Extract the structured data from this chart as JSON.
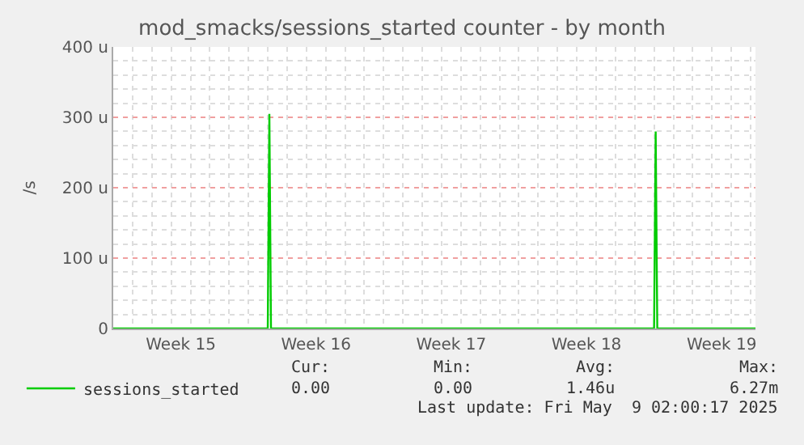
{
  "chart_data": {
    "type": "line",
    "title": "mod_smacks/sessions_started counter - by month",
    "ylabel": "/s",
    "x": [
      "2025-04-07",
      "2025-04-15T00:00",
      "2025-04-15T02:00",
      "2025-04-15T04:00",
      "2025-05-05T00:00",
      "2025-05-05T02:00",
      "2025-05-05T04:00",
      "2025-05-10T06:00"
    ],
    "series": [
      {
        "name": "sessions_started",
        "color": "#00cc00",
        "values": [
          0,
          0,
          305,
          0,
          0,
          280,
          0,
          0
        ]
      }
    ],
    "xlim": [
      "2025-04-07",
      "2025-05-10T06:00"
    ],
    "xticks": [
      {
        "value": "2025-04-10T12:00",
        "label": "Week 15"
      },
      {
        "value": "2025-04-17T12:00",
        "label": "Week 16"
      },
      {
        "value": "2025-04-24T12:00",
        "label": "Week 17"
      },
      {
        "value": "2025-05-01T12:00",
        "label": "Week 18"
      },
      {
        "value": "2025-05-08T12:00",
        "label": "Week 19"
      }
    ],
    "ylim": [
      0,
      400
    ],
    "yticks": [
      0,
      {
        "value": 100,
        "label": "100 u"
      },
      {
        "value": 200,
        "label": "200 u"
      },
      {
        "value": 300,
        "label": "300 u"
      },
      {
        "value": 400,
        "label": "400 u"
      }
    ],
    "grid": true,
    "legend": "bottom left",
    "marker": "none",
    "line_style": "solid",
    "annotations": [
      "Cur:",
      "Min:",
      "Avg:",
      "Max:",
      "0.00",
      "0.00",
      "1.46u",
      "6.27m",
      "Last update: Fri May  9 02:00:17 2025"
    ]
  }
}
